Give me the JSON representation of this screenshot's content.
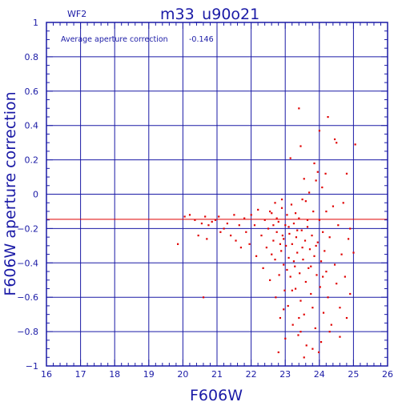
{
  "chart_data": {
    "type": "scatter",
    "title": "m33_u90o21",
    "chip_label": "WF2",
    "xlabel": "F606W",
    "ylabel": "F606W aperture correction",
    "annotation": {
      "text": "Average aperture correction",
      "value": "-0.146"
    },
    "xlim": [
      16,
      26
    ],
    "ylim": [
      -1,
      1
    ],
    "xticks": [
      16,
      17,
      18,
      19,
      20,
      21,
      22,
      23,
      24,
      25,
      26
    ],
    "yticks": [
      -1,
      -0.8,
      -0.6,
      -0.4,
      -0.2,
      0,
      0.2,
      0.4,
      0.6,
      0.8,
      1
    ],
    "ytick_labels": [
      "−1",
      "−0.8",
      "−0.6",
      "−0.4",
      "−0.2",
      "0",
      "0.2",
      "0.4",
      "0.6",
      "0.8",
      "1"
    ],
    "grid": true,
    "reference_line": {
      "y": -0.146,
      "color": "#e00000"
    },
    "colors": {
      "axes": "#1a1aa6",
      "points": "#e00000"
    },
    "series": [
      {
        "points": [
          [
            19.85,
            -0.29
          ],
          [
            20.05,
            -0.13
          ],
          [
            20.2,
            -0.12
          ],
          [
            20.35,
            -0.15
          ],
          [
            20.45,
            -0.24
          ],
          [
            20.55,
            -0.17
          ],
          [
            20.6,
            -0.6
          ],
          [
            20.65,
            -0.13
          ],
          [
            20.75,
            -0.18
          ],
          [
            20.85,
            -0.16
          ],
          [
            20.7,
            -0.26
          ],
          [
            20.95,
            -0.15
          ],
          [
            21.05,
            -0.13
          ],
          [
            21.1,
            -0.22
          ],
          [
            21.2,
            -0.2
          ],
          [
            21.3,
            -0.17
          ],
          [
            21.4,
            -0.24
          ],
          [
            21.5,
            -0.12
          ],
          [
            21.55,
            -0.27
          ],
          [
            21.65,
            -0.18
          ],
          [
            21.7,
            -0.31
          ],
          [
            21.8,
            -0.14
          ],
          [
            21.85,
            -0.22
          ],
          [
            21.95,
            -0.29
          ],
          [
            22.0,
            -0.12
          ],
          [
            22.1,
            -0.18
          ],
          [
            22.15,
            -0.36
          ],
          [
            22.2,
            -0.09
          ],
          [
            22.3,
            -0.24
          ],
          [
            22.35,
            -0.43
          ],
          [
            22.4,
            -0.15
          ],
          [
            22.45,
            -0.31
          ],
          [
            22.5,
            -0.2
          ],
          [
            22.55,
            -0.5
          ],
          [
            22.6,
            -0.11
          ],
          [
            22.65,
            -0.27
          ],
          [
            22.7,
            -0.38
          ],
          [
            22.72,
            -0.6
          ],
          [
            22.75,
            -0.22
          ],
          [
            22.8,
            -0.16
          ],
          [
            22.82,
            -0.47
          ],
          [
            22.85,
            -0.72
          ],
          [
            22.88,
            -0.33
          ],
          [
            22.9,
            -0.08
          ],
          [
            22.92,
            -0.24
          ],
          [
            22.95,
            -0.41
          ],
          [
            22.98,
            -0.56
          ],
          [
            23.0,
            -0.18
          ],
          [
            23.02,
            -0.3
          ],
          [
            23.05,
            -0.12
          ],
          [
            23.08,
            -0.65
          ],
          [
            23.1,
            -0.37
          ],
          [
            23.12,
            -0.23
          ],
          [
            23.15,
            -0.48
          ],
          [
            23.18,
            -0.06
          ],
          [
            23.2,
            -0.29
          ],
          [
            23.22,
            -0.76
          ],
          [
            23.25,
            -0.17
          ],
          [
            23.28,
            -0.42
          ],
          [
            23.3,
            -0.55
          ],
          [
            23.32,
            -0.25
          ],
          [
            23.35,
            -0.34
          ],
          [
            23.38,
            -0.82
          ],
          [
            23.4,
            -0.14
          ],
          [
            23.42,
            -0.46
          ],
          [
            23.45,
            -0.62
          ],
          [
            23.48,
            -0.21
          ],
          [
            23.5,
            -0.03
          ],
          [
            23.52,
            -0.38
          ],
          [
            23.55,
            -0.7
          ],
          [
            23.58,
            -0.27
          ],
          [
            23.6,
            -0.51
          ],
          [
            23.62,
            -0.88
          ],
          [
            23.65,
            -0.19
          ],
          [
            23.68,
            -0.43
          ],
          [
            23.7,
            0.01
          ],
          [
            23.72,
            -0.32
          ],
          [
            23.75,
            -0.58
          ],
          [
            23.78,
            -0.24
          ],
          [
            23.8,
            -0.66
          ],
          [
            23.82,
            -0.1
          ],
          [
            23.85,
            -0.36
          ],
          [
            23.88,
            -0.78
          ],
          [
            23.9,
            0.08
          ],
          [
            23.92,
            -0.47
          ],
          [
            23.95,
            -0.28
          ],
          [
            23.98,
            -0.92
          ],
          [
            24.0,
            -0.15
          ],
          [
            24.02,
            -0.54
          ],
          [
            24.05,
            -0.39
          ],
          [
            24.08,
            0.04
          ],
          [
            24.1,
            -0.22
          ],
          [
            24.12,
            -0.69
          ],
          [
            24.15,
            -0.33
          ],
          [
            24.18,
            0.12
          ],
          [
            24.2,
            -0.45
          ],
          [
            24.25,
            -0.6
          ],
          [
            24.3,
            -0.25
          ],
          [
            24.35,
            -0.76
          ],
          [
            24.4,
            -0.07
          ],
          [
            24.45,
            -0.41
          ],
          [
            24.5,
            -0.52
          ],
          [
            24.55,
            -0.18
          ],
          [
            24.6,
            -0.66
          ],
          [
            24.65,
            -0.35
          ],
          [
            24.7,
            -0.05
          ],
          [
            24.75,
            -0.48
          ],
          [
            24.8,
            -0.72
          ],
          [
            24.85,
            -0.26
          ],
          [
            24.9,
            -0.58
          ],
          [
            25.0,
            -0.34
          ],
          [
            25.05,
            0.29
          ],
          [
            24.9,
            -0.2
          ],
          [
            24.8,
            0.12
          ],
          [
            24.0,
            0.37
          ],
          [
            23.4,
            0.5
          ],
          [
            24.25,
            0.45
          ],
          [
            24.45,
            0.32
          ],
          [
            24.5,
            0.3
          ],
          [
            23.95,
            0.13
          ],
          [
            23.85,
            0.18
          ],
          [
            23.45,
            0.28
          ],
          [
            23.15,
            0.21
          ],
          [
            23.55,
            0.09
          ],
          [
            22.9,
            -0.03
          ],
          [
            22.55,
            -0.1
          ],
          [
            22.7,
            -0.05
          ],
          [
            23.3,
            -0.11
          ],
          [
            23.1,
            -0.19
          ],
          [
            22.6,
            -0.35
          ],
          [
            22.75,
            -0.14
          ],
          [
            22.95,
            -0.26
          ],
          [
            23.25,
            -0.39
          ],
          [
            23.5,
            -0.31
          ],
          [
            23.65,
            -0.15
          ],
          [
            23.35,
            -0.21
          ],
          [
            23.05,
            -0.44
          ],
          [
            22.85,
            -0.29
          ],
          [
            23.75,
            -0.42
          ],
          [
            24.1,
            -0.48
          ],
          [
            24.2,
            -0.1
          ],
          [
            23.9,
            -0.3
          ],
          [
            23.6,
            -0.04
          ],
          [
            22.65,
            -0.18
          ],
          [
            23.2,
            -0.56
          ],
          [
            23.45,
            -0.8
          ],
          [
            23.55,
            -0.95
          ],
          [
            23.8,
            -0.9
          ],
          [
            24.05,
            -0.86
          ],
          [
            22.8,
            -0.92
          ],
          [
            23.0,
            -0.84
          ],
          [
            24.3,
            -0.8
          ],
          [
            24.6,
            -0.83
          ],
          [
            22.95,
            -0.67
          ],
          [
            23.4,
            -0.72
          ]
        ]
      }
    ]
  }
}
